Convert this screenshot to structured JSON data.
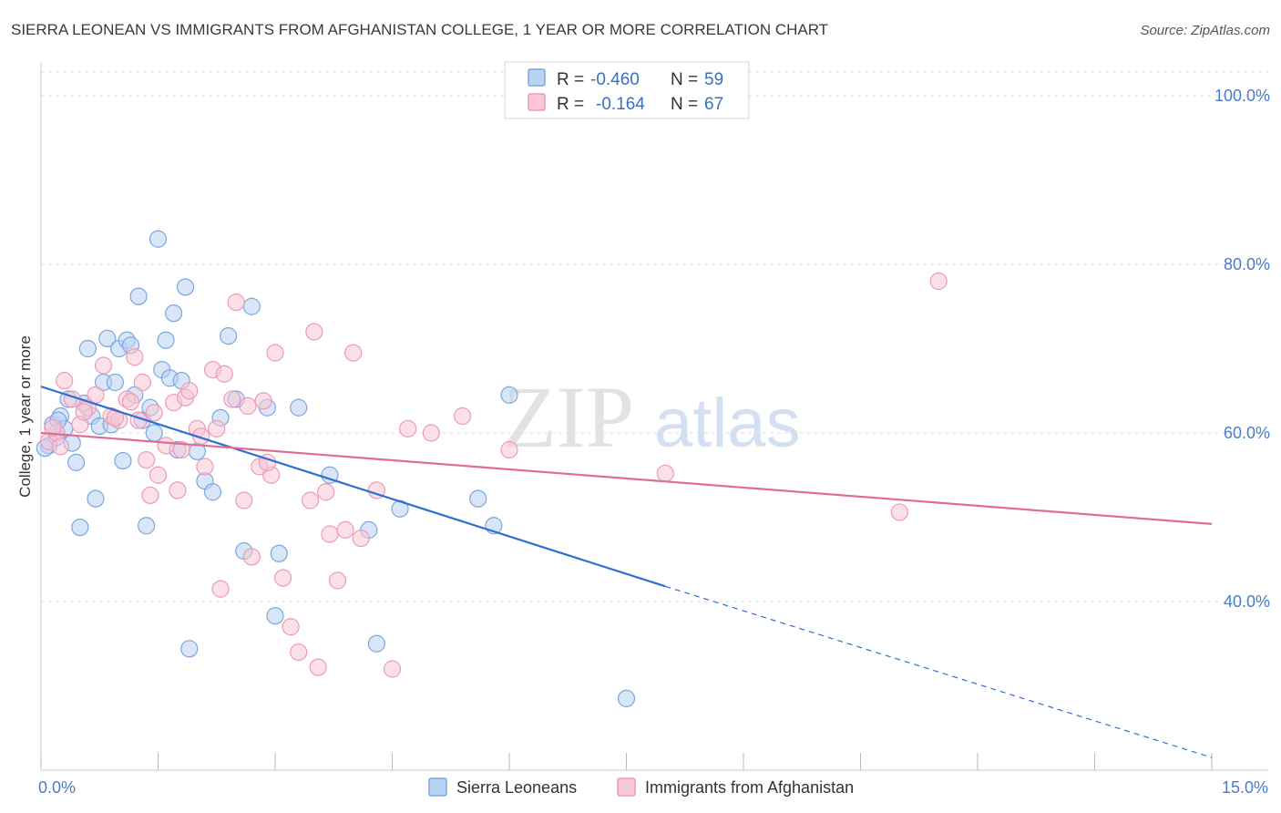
{
  "title": "SIERRA LEONEAN VS IMMIGRANTS FROM AFGHANISTAN COLLEGE, 1 YEAR OR MORE CORRELATION CHART",
  "source": "Source: ZipAtlas.com",
  "watermark": {
    "zip": "ZIP",
    "atlas": "atlas"
  },
  "legend_top": {
    "rows": [
      {
        "r_label": "R =",
        "r_value": "-0.460",
        "n_label": "N =",
        "n_value": "59",
        "color_fill": "#b9d2f2",
        "color_stroke": "#7aa6e0"
      },
      {
        "r_label": "R =",
        "r_value": "-0.164",
        "n_label": "N =",
        "n_value": "67",
        "color_fill": "#f8c7d6",
        "color_stroke": "#ec9ab5"
      }
    ]
  },
  "legend_bottom": [
    {
      "label": "Sierra Leoneans",
      "color_fill": "#b9d2f2",
      "color_stroke": "#7aa6e0"
    },
    {
      "label": "Immigrants from Afghanistan",
      "color_fill": "#f8c7d6",
      "color_stroke": "#ec9ab5"
    }
  ],
  "chart_data": {
    "type": "scatter",
    "title": "SIERRA LEONEAN VS IMMIGRANTS FROM AFGHANISTAN COLLEGE, 1 YEAR OR MORE CORRELATION CHART",
    "xlabel": "",
    "ylabel": "College, 1 year or more",
    "xlim": [
      0,
      15
    ],
    "ylim": [
      20,
      104
    ],
    "x_tick_labels": [
      "0.0%",
      "15.0%"
    ],
    "y_ticks": [
      40,
      60,
      80,
      100
    ],
    "y_tick_labels": [
      "40.0%",
      "60.0%",
      "80.0%",
      "100.0%"
    ],
    "grid": true,
    "series": [
      {
        "name": "Sierra Leoneans",
        "fill": "#b9d2f2",
        "stroke": "#7aa6e0",
        "trend": {
          "x0": 0.0,
          "y0": 65.5,
          "x1": 8.0,
          "y1": 41.8,
          "dash_to_x": 15.0,
          "dash_to_y": 21.5,
          "color": "#2e6fd1"
        },
        "points": [
          [
            0.1,
            58.5
          ],
          [
            0.15,
            61.0
          ],
          [
            0.2,
            59.5
          ],
          [
            0.25,
            62.0
          ],
          [
            0.3,
            60.5
          ],
          [
            0.35,
            64.0
          ],
          [
            0.4,
            58.8
          ],
          [
            0.45,
            56.5
          ],
          [
            0.5,
            48.8
          ],
          [
            0.55,
            63.5
          ],
          [
            0.6,
            70.0
          ],
          [
            0.65,
            62.0
          ],
          [
            0.7,
            52.2
          ],
          [
            0.75,
            60.8
          ],
          [
            0.8,
            66.0
          ],
          [
            0.85,
            71.2
          ],
          [
            0.9,
            61.0
          ],
          [
            0.95,
            66.0
          ],
          [
            1.0,
            70.0
          ],
          [
            1.05,
            56.7
          ],
          [
            1.1,
            71.0
          ],
          [
            1.15,
            70.4
          ],
          [
            1.2,
            64.5
          ],
          [
            1.25,
            76.2
          ],
          [
            1.3,
            61.5
          ],
          [
            1.35,
            49.0
          ],
          [
            1.4,
            63.0
          ],
          [
            1.45,
            60.0
          ],
          [
            1.5,
            83.0
          ],
          [
            1.55,
            67.5
          ],
          [
            1.6,
            71.0
          ],
          [
            1.65,
            66.5
          ],
          [
            1.7,
            74.2
          ],
          [
            1.75,
            58.0
          ],
          [
            1.8,
            66.2
          ],
          [
            1.85,
            77.3
          ],
          [
            1.9,
            34.4
          ],
          [
            2.0,
            57.8
          ],
          [
            2.1,
            54.3
          ],
          [
            2.2,
            53.0
          ],
          [
            2.3,
            61.8
          ],
          [
            2.4,
            71.5
          ],
          [
            2.5,
            64.0
          ],
          [
            2.6,
            46.0
          ],
          [
            2.7,
            75.0
          ],
          [
            2.9,
            63.0
          ],
          [
            3.0,
            38.3
          ],
          [
            3.05,
            45.7
          ],
          [
            3.3,
            63.0
          ],
          [
            3.7,
            55.0
          ],
          [
            4.2,
            48.5
          ],
          [
            4.3,
            35.0
          ],
          [
            4.6,
            51.0
          ],
          [
            5.6,
            52.2
          ],
          [
            5.8,
            49.0
          ],
          [
            6.0,
            64.5
          ],
          [
            7.5,
            28.5
          ],
          [
            0.05,
            58.2
          ],
          [
            0.22,
            61.5
          ]
        ]
      },
      {
        "name": "Immigrants from Afghanistan",
        "fill": "#f8c7d6",
        "stroke": "#ec9ab5",
        "trend": {
          "x0": 0.0,
          "y0": 60.0,
          "x1": 15.0,
          "y1": 49.2,
          "color": "#e06b96"
        },
        "points": [
          [
            0.1,
            59.0
          ],
          [
            0.2,
            60.0
          ],
          [
            0.3,
            66.2
          ],
          [
            0.4,
            64.0
          ],
          [
            0.5,
            61.0
          ],
          [
            0.6,
            63.0
          ],
          [
            0.7,
            64.5
          ],
          [
            0.8,
            68.0
          ],
          [
            0.9,
            62.0
          ],
          [
            1.0,
            61.5
          ],
          [
            1.1,
            64.0
          ],
          [
            1.2,
            69.0
          ],
          [
            1.3,
            66.0
          ],
          [
            1.35,
            56.8
          ],
          [
            1.4,
            52.6
          ],
          [
            1.5,
            55.0
          ],
          [
            1.6,
            58.5
          ],
          [
            1.7,
            63.6
          ],
          [
            1.75,
            53.2
          ],
          [
            1.8,
            58.0
          ],
          [
            1.85,
            64.2
          ],
          [
            1.9,
            65.0
          ],
          [
            2.0,
            60.5
          ],
          [
            2.1,
            56.0
          ],
          [
            2.2,
            67.5
          ],
          [
            2.25,
            60.5
          ],
          [
            2.3,
            41.5
          ],
          [
            2.35,
            67.0
          ],
          [
            2.45,
            64.0
          ],
          [
            2.5,
            75.5
          ],
          [
            2.6,
            52.0
          ],
          [
            2.65,
            63.2
          ],
          [
            2.7,
            45.3
          ],
          [
            2.8,
            56.0
          ],
          [
            2.85,
            63.8
          ],
          [
            2.95,
            55.0
          ],
          [
            3.0,
            69.5
          ],
          [
            3.1,
            42.8
          ],
          [
            3.2,
            37.0
          ],
          [
            3.3,
            34.0
          ],
          [
            3.45,
            52.0
          ],
          [
            3.5,
            72.0
          ],
          [
            3.55,
            32.2
          ],
          [
            3.7,
            48.0
          ],
          [
            3.8,
            42.5
          ],
          [
            3.9,
            48.5
          ],
          [
            4.0,
            69.5
          ],
          [
            4.1,
            47.5
          ],
          [
            4.3,
            53.2
          ],
          [
            4.5,
            32.0
          ],
          [
            4.7,
            60.5
          ],
          [
            5.0,
            60.0
          ],
          [
            5.4,
            62.0
          ],
          [
            6.0,
            58.0
          ],
          [
            8.0,
            55.2
          ],
          [
            11.0,
            50.6
          ],
          [
            11.5,
            78.0
          ],
          [
            0.15,
            60.6
          ],
          [
            0.25,
            58.4
          ],
          [
            0.55,
            62.5
          ],
          [
            0.95,
            61.8
          ],
          [
            1.15,
            63.7
          ],
          [
            1.25,
            61.5
          ],
          [
            1.45,
            62.4
          ],
          [
            2.9,
            56.5
          ],
          [
            3.65,
            53.0
          ],
          [
            2.05,
            59.6
          ]
        ]
      }
    ]
  }
}
